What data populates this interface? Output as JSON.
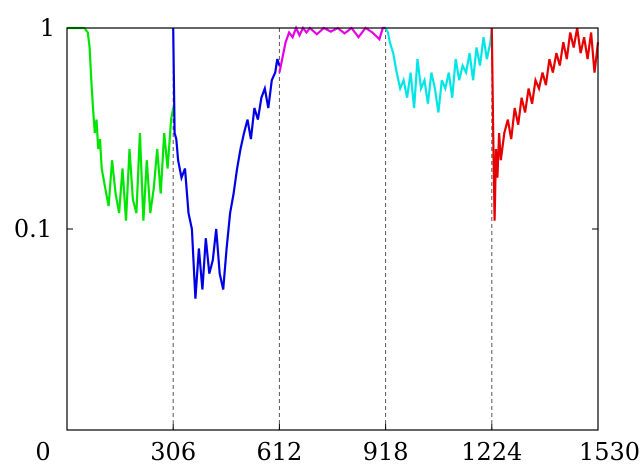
{
  "chart_data": {
    "type": "line",
    "title": "",
    "xlabel": "",
    "ylabel": "",
    "xlim": [
      0,
      1530
    ],
    "ylim": [
      0.01,
      1
    ],
    "yscale": "log",
    "xticks": [
      0,
      306,
      612,
      918,
      1224,
      1530
    ],
    "xtick_labels": [
      "0",
      "306",
      "612",
      "918",
      "1224",
      "1530"
    ],
    "yticks": [
      0.1,
      1
    ],
    "ytick_labels": [
      "0.1",
      "1"
    ],
    "grid": false,
    "dashed_vlines": [
      306,
      612,
      918,
      1224
    ],
    "series": [
      {
        "color": "#00e600",
        "x": [
          0,
          50,
          60,
          65,
          70,
          75,
          80,
          85,
          90,
          95,
          100,
          110,
          120,
          130,
          140,
          150,
          160,
          170,
          180,
          190,
          200,
          210,
          220,
          230,
          240,
          250,
          260,
          270,
          280,
          290,
          300,
          306
        ],
        "y": [
          1,
          1,
          0.95,
          0.8,
          0.55,
          0.4,
          0.3,
          0.35,
          0.25,
          0.28,
          0.2,
          0.16,
          0.13,
          0.22,
          0.15,
          0.12,
          0.2,
          0.11,
          0.25,
          0.14,
          0.12,
          0.3,
          0.11,
          0.22,
          0.12,
          0.16,
          0.25,
          0.15,
          0.3,
          0.2,
          0.35,
          0.4
        ]
      },
      {
        "color": "#0000e6",
        "x": [
          306,
          310,
          315,
          320,
          330,
          340,
          350,
          360,
          370,
          380,
          390,
          400,
          410,
          420,
          430,
          440,
          450,
          460,
          470,
          480,
          490,
          500,
          510,
          520,
          530,
          540,
          550,
          560,
          570,
          580,
          590,
          600,
          606,
          612
        ],
        "y": [
          1,
          0.3,
          0.28,
          0.22,
          0.18,
          0.2,
          0.12,
          0.1,
          0.045,
          0.08,
          0.05,
          0.09,
          0.06,
          0.07,
          0.1,
          0.06,
          0.05,
          0.08,
          0.12,
          0.15,
          0.2,
          0.25,
          0.3,
          0.35,
          0.28,
          0.4,
          0.35,
          0.45,
          0.5,
          0.4,
          0.55,
          0.6,
          0.7,
          0.65
        ]
      },
      {
        "color": "#e600e6",
        "x": [
          612,
          620,
          630,
          640,
          650,
          660,
          670,
          680,
          690,
          700,
          720,
          740,
          760,
          780,
          800,
          820,
          840,
          860,
          880,
          900,
          910,
          918
        ],
        "y": [
          0.6,
          0.7,
          0.85,
          0.95,
          0.9,
          1,
          0.92,
          1,
          0.95,
          1,
          0.93,
          1,
          0.96,
          1,
          0.94,
          1,
          0.9,
          1,
          0.95,
          0.88,
          1,
          1
        ]
      },
      {
        "color": "#00e6e6",
        "x": [
          918,
          925,
          930,
          940,
          950,
          960,
          970,
          980,
          990,
          1000,
          1010,
          1020,
          1030,
          1040,
          1050,
          1060,
          1070,
          1080,
          1090,
          1100,
          1110,
          1120,
          1130,
          1140,
          1150,
          1160,
          1170,
          1180,
          1190,
          1200,
          1210,
          1220,
          1224
        ],
        "y": [
          1,
          0.95,
          0.85,
          0.75,
          0.6,
          0.5,
          0.55,
          0.45,
          0.6,
          0.4,
          0.7,
          0.5,
          0.55,
          0.42,
          0.6,
          0.5,
          0.38,
          0.55,
          0.5,
          0.6,
          0.45,
          0.7,
          0.55,
          0.65,
          0.6,
          0.75,
          0.55,
          0.8,
          0.65,
          0.9,
          0.7,
          0.85,
          1
        ]
      },
      {
        "color": "#e60000",
        "x": [
          1224,
          1228,
          1232,
          1236,
          1240,
          1245,
          1250,
          1260,
          1270,
          1280,
          1290,
          1300,
          1310,
          1320,
          1330,
          1340,
          1350,
          1360,
          1370,
          1380,
          1390,
          1400,
          1410,
          1420,
          1430,
          1440,
          1450,
          1460,
          1470,
          1480,
          1490,
          1500,
          1510,
          1520,
          1530
        ],
        "y": [
          1,
          0.3,
          0.11,
          0.25,
          0.18,
          0.3,
          0.22,
          0.3,
          0.35,
          0.28,
          0.4,
          0.33,
          0.45,
          0.38,
          0.5,
          0.42,
          0.55,
          0.5,
          0.6,
          0.52,
          0.7,
          0.6,
          0.75,
          0.65,
          0.85,
          0.7,
          0.95,
          0.8,
          1,
          0.75,
          0.9,
          0.7,
          0.95,
          0.6,
          0.85
        ]
      }
    ]
  }
}
